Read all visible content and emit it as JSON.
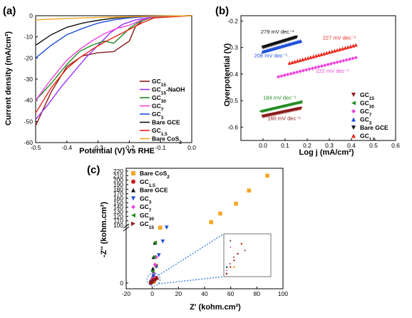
{
  "chart_data": [
    {
      "panel": "(a)",
      "type": "line",
      "xlabel": "Potential (V) vs RHE",
      "ylabel": "Current density (mA/cm²)",
      "xlim": [
        -0.5,
        0.0
      ],
      "ylim": [
        -60,
        0
      ],
      "x_ticks": [
        "-0.5",
        "-0.4",
        "-0.3",
        "-0.2",
        "-0.1",
        "0.0"
      ],
      "y_ticks": [
        "0",
        "-10",
        "-20",
        "-30",
        "-40",
        "-50",
        "-60"
      ],
      "legend_position": "right",
      "series": [
        {
          "name": "GC15",
          "label_main": "GC",
          "label_sub": "15",
          "label_suffix": "",
          "color": "#8b1a1a",
          "x": [
            0.0,
            -0.1,
            -0.15,
            -0.18,
            -0.2,
            -0.25,
            -0.3,
            -0.35,
            -0.4,
            -0.45,
            -0.5
          ],
          "y": [
            0.0,
            -0.3,
            -1.5,
            -5.0,
            -12.0,
            -17.0,
            -17.5,
            -19.0,
            -24.0,
            -36.0,
            -52.0
          ]
        },
        {
          "name": "GC15-NaOH",
          "label_main": "GC",
          "label_sub": "15",
          "label_suffix": "-NaOH",
          "color": "#9b30ff",
          "x": [
            0.0,
            -0.12,
            -0.18,
            -0.22,
            -0.26,
            -0.3,
            -0.34,
            -0.38,
            -0.42,
            -0.46,
            -0.5
          ],
          "y": [
            0.0,
            -0.5,
            -2.0,
            -4.0,
            -8.0,
            -14.0,
            -20.0,
            -27.0,
            -34.0,
            -42.0,
            -49.0
          ]
        },
        {
          "name": "GC30",
          "label_main": "GC",
          "label_sub": "30",
          "label_suffix": "",
          "color": "#228b22",
          "x": [
            0.0,
            -0.12,
            -0.17,
            -0.2,
            -0.22,
            -0.25,
            -0.28,
            -0.32,
            -0.36,
            -0.4,
            -0.45,
            -0.5
          ],
          "y": [
            0.0,
            -0.5,
            -3.0,
            -6.0,
            -9.0,
            -13.0,
            -12.0,
            -14.0,
            -17.0,
            -23.0,
            -32.0,
            -40.0
          ]
        },
        {
          "name": "GC7",
          "label_main": "GC",
          "label_sub": "7",
          "label_suffix": "",
          "color": "#ee44dd",
          "x": [
            0.0,
            -0.12,
            -0.16,
            -0.2,
            -0.24,
            -0.28,
            -0.32,
            -0.36,
            -0.4,
            -0.45,
            -0.5
          ],
          "y": [
            0.0,
            -0.5,
            -2.0,
            -4.5,
            -6.0,
            -8.5,
            -12.0,
            -16.0,
            -21.0,
            -30.0,
            -40.0
          ]
        },
        {
          "name": "GC3",
          "label_main": "GC",
          "label_sub": "3",
          "label_suffix": "",
          "color": "#1f4fd8",
          "x": [
            0.0,
            -0.15,
            -0.2,
            -0.25,
            -0.3,
            -0.35,
            -0.4,
            -0.45,
            -0.5
          ],
          "y": [
            0.0,
            -0.5,
            -1.0,
            -2.0,
            -3.5,
            -6.0,
            -9.0,
            -14.0,
            -20.0
          ]
        },
        {
          "name": "Bare GCE",
          "label_main": "Bare GCE",
          "label_sub": "",
          "label_suffix": "",
          "color": "#111111",
          "x": [
            0.0,
            -0.15,
            -0.2,
            -0.25,
            -0.3,
            -0.35,
            -0.4,
            -0.45,
            -0.5
          ],
          "y": [
            0.0,
            -0.3,
            -0.6,
            -1.2,
            -2.2,
            -3.5,
            -5.5,
            -9.0,
            -14.0
          ]
        },
        {
          "name": "GC1.5",
          "label_main": "GC",
          "label_sub": "1.5",
          "label_suffix": "",
          "color": "#e8261a",
          "x": [
            0.0,
            -0.12,
            -0.16,
            -0.2,
            -0.24,
            -0.28,
            -0.32,
            -0.36,
            -0.4,
            -0.45,
            -0.5
          ],
          "y": [
            0.0,
            -1.0,
            -3.5,
            -6.5,
            -9.5,
            -12.5,
            -16.0,
            -20.0,
            -25.0,
            -34.0,
            -46.0
          ]
        },
        {
          "name": "Bare CoS2",
          "label_main": "Bare CoS",
          "label_sub": "2",
          "label_suffix": "",
          "color": "#f5a623",
          "x": [
            0.0,
            -0.1,
            -0.2,
            -0.3,
            -0.4,
            -0.5
          ],
          "y": [
            0.0,
            -0.2,
            -0.5,
            -0.8,
            -1.3,
            -2.0
          ]
        }
      ]
    },
    {
      "panel": "(b)",
      "type": "scatter",
      "xlabel": "Log j (mA/cm²)",
      "ylabel": "Overpotential (V)",
      "xlim": [
        -0.1,
        0.6
      ],
      "ylim": [
        -0.65,
        -0.18
      ],
      "x_ticks": [
        "0.0",
        "0.1",
        "0.2",
        "0.3",
        "0.4",
        "0.5",
        "0.6"
      ],
      "y_ticks": [
        "-0.2",
        "-0.3",
        "-0.4",
        "-0.5",
        "-0.6"
      ],
      "legend_position": "bottom-right",
      "series": [
        {
          "name": "GC15",
          "label_main": "GC",
          "label_sub": "15",
          "color": "#8b1a1a",
          "marker": "tri-down",
          "x0": 0.0,
          "x1": 0.17,
          "y0": -0.56,
          "y1": -0.53,
          "tafel": "160 mV dec⁻¹",
          "tafel_ax": 0.02,
          "tafel_ay": -0.573
        },
        {
          "name": "GC30",
          "label_main": "GC",
          "label_sub": "30",
          "color": "#228b22",
          "marker": "tri-left",
          "x0": -0.01,
          "x1": 0.17,
          "y0": -0.54,
          "y1": -0.505,
          "tafel": "184 mV dec⁻¹",
          "tafel_ax": 0.0,
          "tafel_ay": -0.495
        },
        {
          "name": "GC7",
          "label_main": "GC",
          "label_sub": "7",
          "color": "#ee44dd",
          "marker": "diamond",
          "x0": 0.07,
          "x1": 0.42,
          "y0": -0.41,
          "y1": -0.338,
          "tafel": "222 mV dec⁻¹",
          "tafel_ax": 0.24,
          "tafel_ay": -0.395
        },
        {
          "name": "GC3",
          "label_main": "GC",
          "label_sub": "3",
          "color": "#1f4fd8",
          "marker": "tri-up",
          "x0": 0.0,
          "x1": 0.17,
          "y0": -0.315,
          "y1": -0.275,
          "tafel": "208 mV dec⁻¹",
          "tafel_ax": -0.04,
          "tafel_ay": -0.337
        },
        {
          "name": "Bare GCE",
          "label_main": "Bare GCE",
          "label_sub": "",
          "color": "#111111",
          "marker": "tri-down",
          "x0": 0.0,
          "x1": 0.15,
          "y0": -0.3,
          "y1": -0.262,
          "tafel": "279 mV dec⁻¹",
          "tafel_ax": -0.01,
          "tafel_ay": -0.247
        },
        {
          "name": "GC1.5",
          "label_main": "GC",
          "label_sub": "1.5",
          "color": "#e8261a",
          "marker": "tri-up",
          "x0": 0.12,
          "x1": 0.42,
          "y0": -0.358,
          "y1": -0.29,
          "tafel": "227 mV dec⁻¹",
          "tafel_ax": 0.27,
          "tafel_ay": -0.27
        }
      ]
    },
    {
      "panel": "(c)",
      "type": "scatter",
      "xlabel": "Z' (kohm.cm²)",
      "ylabel": "-Z'' (kohm.cm²)",
      "xlim": [
        -20,
        100
      ],
      "y_ticks_top": [
        "100",
        "110",
        "120",
        "130",
        "140",
        "150",
        "160",
        "170",
        "180",
        "190",
        "200",
        "210",
        "220"
      ],
      "y_ticks_bottom": [
        "0"
      ],
      "x_ticks": [
        "-20",
        "0",
        "20",
        "40",
        "60",
        "80",
        "100"
      ],
      "legend_position": "top-left",
      "series": [
        {
          "name": "Bare CoS2",
          "label_main": "Bare CoS",
          "label_sub": "2",
          "color": "#f5a623",
          "marker": "square",
          "x": [
            1,
            3,
            6,
            45,
            52,
            64,
            74,
            88
          ],
          "y": [
            2,
            30,
            96,
            107,
            126,
            148,
            177,
            210
          ]
        },
        {
          "name": "GC1.5",
          "label_main": "GC",
          "label_sub": "1.5",
          "color": "#c41e1e",
          "marker": "circle",
          "x": [
            -1,
            0,
            1,
            2,
            3
          ],
          "y": [
            0,
            2,
            4,
            6,
            9
          ]
        },
        {
          "name": "Bare GCE",
          "label_main": "Bare GCE",
          "label_sub": "",
          "color": "#111111",
          "marker": "tri-up",
          "x": [
            -1,
            0,
            0.5,
            1,
            2
          ],
          "y": [
            2,
            10,
            25,
            45,
            70
          ]
        },
        {
          "name": "GC3",
          "label_main": "GC",
          "label_sub": "3",
          "color": "#1f4fd8",
          "marker": "tri-down",
          "x": [
            -1,
            1,
            3,
            5,
            8,
            11
          ],
          "y": [
            2,
            12,
            28,
            48,
            72,
            96
          ]
        },
        {
          "name": "GC7",
          "label_main": "GC",
          "label_sub": "7",
          "color": "#ee44dd",
          "marker": "diamond",
          "x": [
            -1,
            0,
            1,
            2,
            3
          ],
          "y": [
            1,
            8,
            18,
            32,
            45
          ]
        },
        {
          "name": "GC30",
          "label_main": "GC",
          "label_sub": "30",
          "color": "#228b22",
          "marker": "tri-left",
          "x": [
            -1,
            0,
            1,
            2
          ],
          "y": [
            2,
            20,
            45,
            70
          ]
        },
        {
          "name": "GC15",
          "label_main": "GC",
          "label_sub": "15",
          "color": "#8b1a1a",
          "marker": "tri-right",
          "x": [
            -1,
            0,
            1,
            2,
            4
          ],
          "y": [
            0,
            3,
            5,
            6,
            7
          ]
        }
      ]
    }
  ]
}
